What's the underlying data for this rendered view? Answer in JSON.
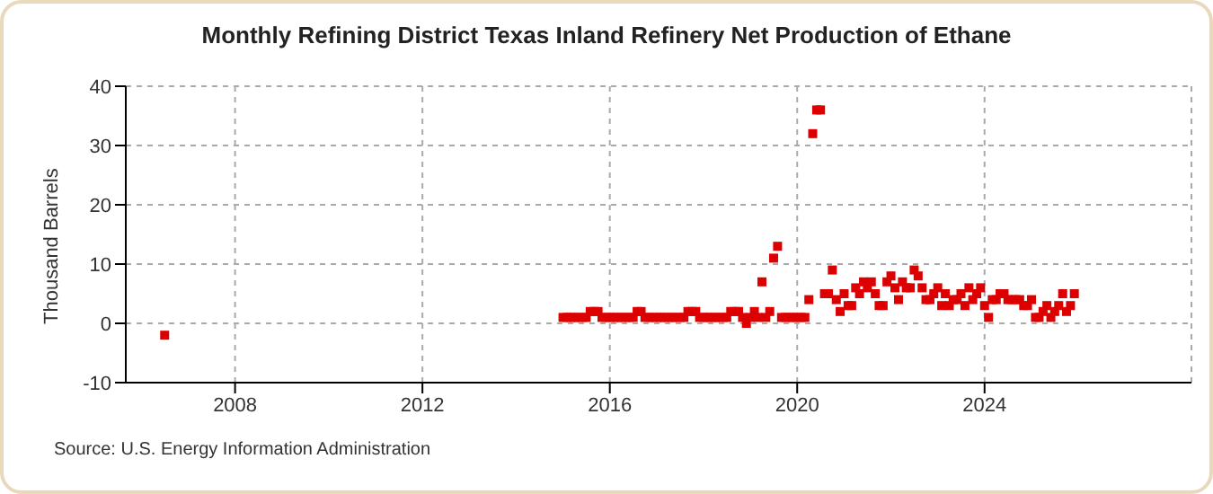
{
  "chart_data": {
    "type": "scatter",
    "title": "Monthly Refining District Texas Inland Refinery Net Production of Ethane",
    "ylabel": "Thousand Barrels",
    "x": [
      "2006-07",
      "2015-01",
      "2015-02",
      "2015-03",
      "2015-04",
      "2015-05",
      "2015-06",
      "2015-07",
      "2015-08",
      "2015-09",
      "2015-10",
      "2015-11",
      "2015-12",
      "2016-01",
      "2016-02",
      "2016-03",
      "2016-04",
      "2016-05",
      "2016-06",
      "2016-07",
      "2016-08",
      "2016-09",
      "2016-10",
      "2016-11",
      "2016-12",
      "2017-01",
      "2017-02",
      "2017-03",
      "2017-04",
      "2017-05",
      "2017-06",
      "2017-07",
      "2017-08",
      "2017-09",
      "2017-10",
      "2017-11",
      "2017-12",
      "2018-01",
      "2018-02",
      "2018-03",
      "2018-04",
      "2018-05",
      "2018-06",
      "2018-07",
      "2018-08",
      "2018-09",
      "2018-10",
      "2018-11",
      "2018-12",
      "2019-01",
      "2019-02",
      "2019-03",
      "2019-04",
      "2019-05",
      "2019-06",
      "2019-07",
      "2019-08",
      "2019-09",
      "2019-10",
      "2019-11",
      "2019-12",
      "2020-01",
      "2020-02",
      "2020-03",
      "2020-04",
      "2020-05",
      "2020-06",
      "2020-07",
      "2020-08",
      "2020-09",
      "2020-10",
      "2020-11",
      "2020-12",
      "2021-01",
      "2021-02",
      "2021-03",
      "2021-04",
      "2021-05",
      "2021-06",
      "2021-07",
      "2021-08",
      "2021-09",
      "2021-10",
      "2021-11",
      "2021-12",
      "2022-01",
      "2022-02",
      "2022-03",
      "2022-04",
      "2022-05",
      "2022-06",
      "2022-07",
      "2022-08",
      "2022-09",
      "2022-10",
      "2022-11",
      "2022-12",
      "2023-01",
      "2023-02",
      "2023-03",
      "2023-04",
      "2023-05",
      "2023-06",
      "2023-07",
      "2023-08",
      "2023-09",
      "2023-10",
      "2023-11",
      "2023-12",
      "2024-01",
      "2024-02",
      "2024-03",
      "2024-04",
      "2024-05",
      "2024-06",
      "2024-07",
      "2024-08",
      "2024-09",
      "2024-10",
      "2024-11",
      "2024-12",
      "2025-01",
      "2025-02",
      "2025-03",
      "2025-04",
      "2025-05",
      "2025-06",
      "2025-07",
      "2025-08",
      "2025-09",
      "2025-10",
      "2025-11",
      "2025-12"
    ],
    "series": [
      {
        "color": "#dd0000",
        "values": [
          -2,
          1,
          1,
          1,
          1,
          1,
          1,
          1,
          2,
          2,
          2,
          1,
          1,
          1,
          1,
          1,
          1,
          1,
          1,
          1,
          2,
          2,
          1,
          1,
          1,
          1,
          1,
          1,
          1,
          1,
          1,
          1,
          1,
          2,
          2,
          2,
          1,
          1,
          1,
          1,
          1,
          1,
          1,
          1,
          2,
          2,
          2,
          1,
          0,
          1,
          2,
          1,
          7,
          1,
          2,
          11,
          13,
          1,
          1,
          1,
          1,
          1,
          1,
          1,
          4,
          32,
          36,
          36,
          5,
          5,
          9,
          4,
          2,
          5,
          3,
          3,
          6,
          5,
          7,
          6,
          7,
          5,
          3,
          3,
          7,
          8,
          6,
          4,
          7,
          6,
          6,
          9,
          8,
          6,
          4,
          4,
          5,
          6,
          3,
          5,
          3,
          4,
          4,
          5,
          3,
          6,
          4,
          5,
          6,
          3,
          1,
          4,
          4,
          5,
          5,
          4,
          4,
          4,
          4,
          3,
          3,
          4,
          1,
          1,
          2,
          3,
          1,
          2,
          3,
          5,
          2,
          3,
          5
        ]
      }
    ],
    "xlim": [
      "2005-09",
      "2028-06"
    ],
    "xticks": [
      "2008",
      "2012",
      "2016",
      "2020",
      "2024"
    ],
    "ylim": [
      -10,
      40
    ],
    "yticks": [
      -10,
      0,
      10,
      20,
      30,
      40
    ],
    "grid": true,
    "marker": "square",
    "annotations": [
      "Source: U.S. Energy Information Administration"
    ]
  }
}
